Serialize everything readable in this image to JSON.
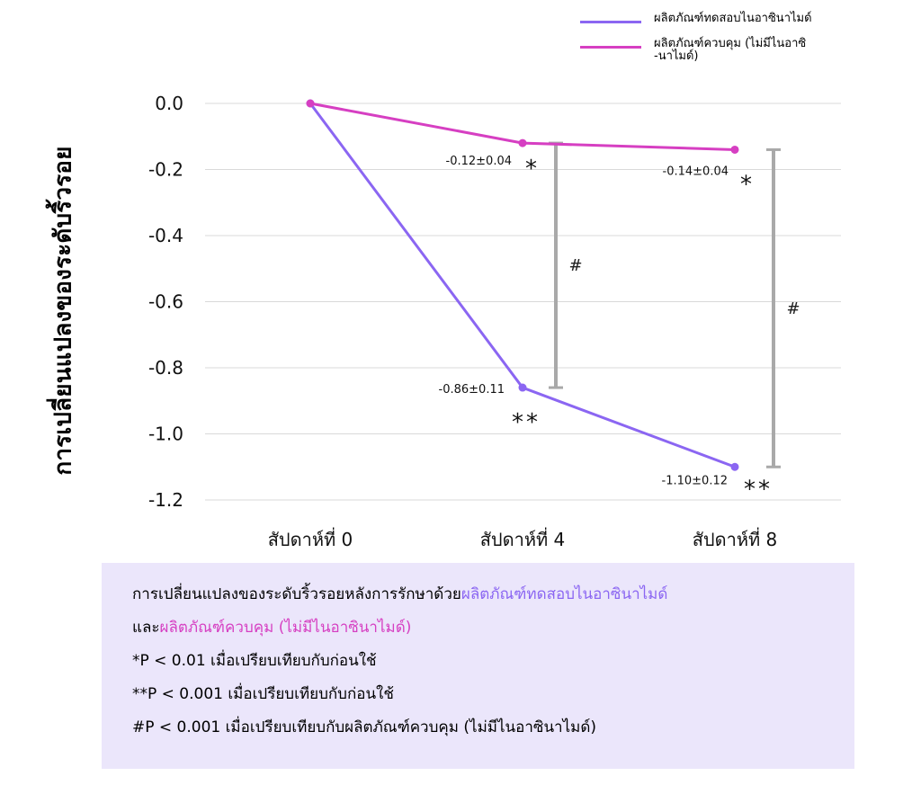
{
  "legend": {
    "items": [
      {
        "label": "ผลิตภัณฑ์ทดสอบไนอาซินาไมด์",
        "color": "#8b66f2"
      },
      {
        "label": "ผลิตภัณฑ์ควบคุม (ไม่มีไนอาซิ\n-นาไมด์)",
        "color": "#d63fc2"
      }
    ]
  },
  "chart_data": {
    "type": "line",
    "title": "",
    "xlabel": "",
    "ylabel": "การเปลี่ยนแปลงของระดับริ้วรอย",
    "categories": [
      "สัปดาห์ที่ 0",
      "สัปดาห์ที่ 4",
      "สัปดาห์ที่ 8"
    ],
    "ylim": [
      -1.2,
      0.0
    ],
    "y_ticks": [
      "0.0",
      "-0.2",
      "-0.4",
      "-0.6",
      "-0.8",
      "-1.0",
      "-1.2"
    ],
    "y_tick_values": [
      0.0,
      -0.2,
      -0.4,
      -0.6,
      -0.8,
      -1.0,
      -1.2
    ],
    "grid": true,
    "legend_position": "top-right",
    "series": [
      {
        "name": "ผลิตภัณฑ์ทดสอบไนอาซินาไมด์",
        "color": "#8b66f2",
        "values": [
          0.0,
          -0.86,
          -1.1
        ],
        "labels": [
          "",
          "-0.86±0.11",
          "-1.10±0.12"
        ],
        "significance": [
          "",
          "**",
          "**"
        ]
      },
      {
        "name": "ผลิตภัณฑ์ควบคุม (ไม่มีไนอาซิ-นาไมด์)",
        "color": "#d63fc2",
        "values": [
          0.0,
          -0.12,
          -0.14
        ],
        "labels": [
          "",
          "-0.12±0.04",
          "-0.14±0.04"
        ],
        "significance": [
          "",
          "*",
          "*"
        ]
      }
    ],
    "comparisons": [
      {
        "category": "สัปดาห์ที่ 4",
        "from": -0.12,
        "to": -0.86,
        "label": "#"
      },
      {
        "category": "สัปดาห์ที่ 8",
        "from": -0.14,
        "to": -1.1,
        "label": "#"
      }
    ]
  },
  "notes": {
    "line1_prefix": "การเปลี่ยนแปลงของระดับริ้วรอยหลังการรักษาด้วย",
    "line1_highlight": "ผลิตภัณฑ์ทดสอบไนอาซินาไมด์",
    "line2_prefix": "และ",
    "line2_highlight": "ผลิตภัณฑ์ควบคุม (ไม่มีไนอาซินาไมด์)",
    "line3": "*P < 0.01 เมื่อเปรียบเทียบกับก่อนใช้",
    "line4": "**P < 0.001 เมื่อเปรียบเทียบกับก่อนใช้",
    "line5": "#P < 0.001 เมื่อเปรียบเทียบกับผลิตภัณฑ์ควบคุม (ไม่มีไนอาซินาไมด์)"
  },
  "colors": {
    "test": "#8b66f2",
    "control": "#d63fc2",
    "error_bar": "#a9a9a9",
    "grid": "#d9d9d9",
    "note_bg": "#ebe6fb"
  }
}
